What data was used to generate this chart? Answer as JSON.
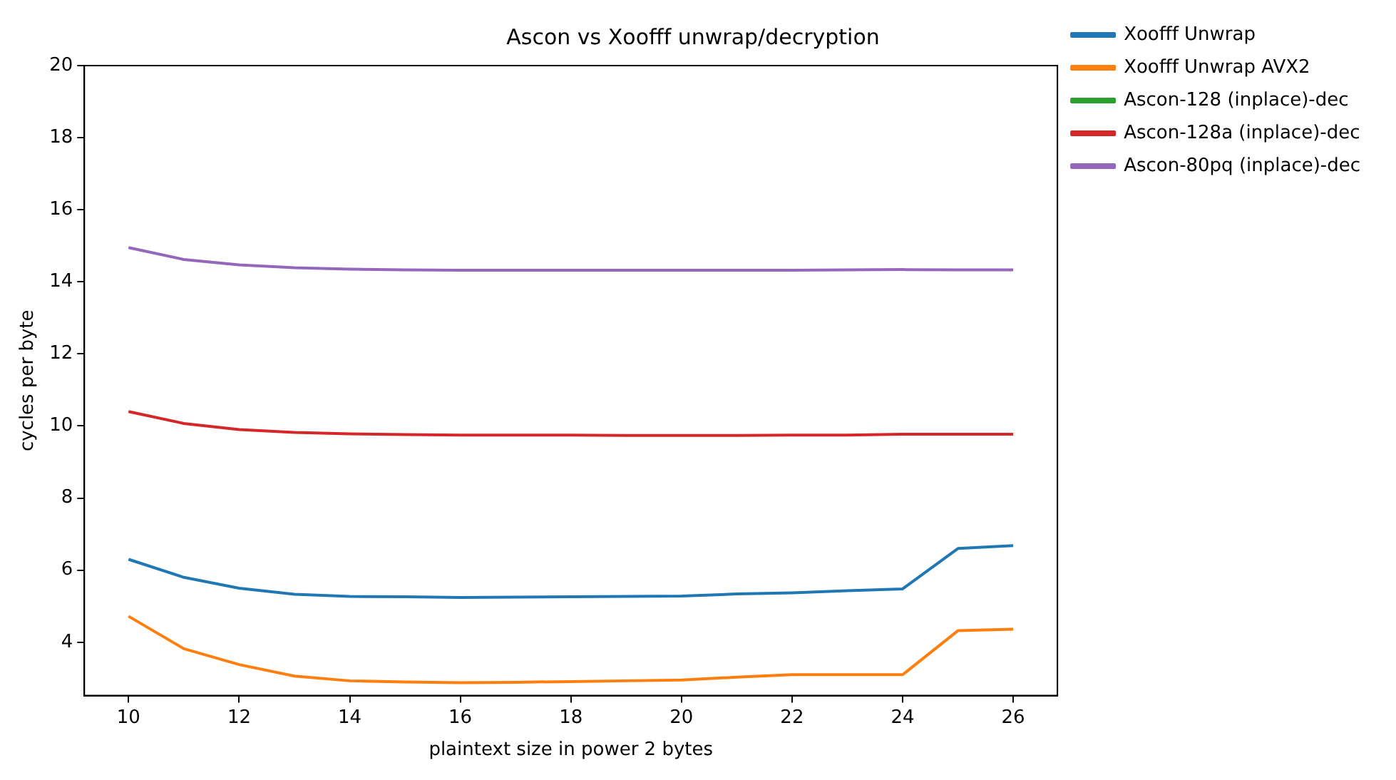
{
  "chart_data": {
    "type": "line",
    "title": "Ascon vs Xoofff unwrap/decryption",
    "xlabel": "plaintext size in power 2 bytes",
    "ylabel": "cycles per byte",
    "x": [
      10,
      11,
      12,
      13,
      14,
      15,
      16,
      17,
      18,
      19,
      20,
      21,
      22,
      23,
      24,
      25,
      26
    ],
    "xlim": [
      9.2,
      26.8
    ],
    "xticks": [
      10,
      12,
      14,
      16,
      18,
      20,
      22,
      24,
      26
    ],
    "ylim": [
      2.52,
      20
    ],
    "yticks": [
      4,
      6,
      8,
      10,
      12,
      14,
      16,
      18,
      20
    ],
    "grid": false,
    "legend": "top right",
    "marker": "none",
    "line_style": "solid",
    "series": [
      {
        "name": "Xoofff Unwrap",
        "color": "#1f77b4",
        "values": [
          6.3,
          5.8,
          5.5,
          5.33,
          5.27,
          5.26,
          5.24,
          5.25,
          5.26,
          5.27,
          5.28,
          5.34,
          5.37,
          5.43,
          5.48,
          6.6,
          6.68
        ]
      },
      {
        "name": "Xoofff Unwrap AVX2",
        "color": "#ff7f0e",
        "values": [
          4.72,
          3.82,
          3.38,
          3.06,
          2.93,
          2.9,
          2.88,
          2.89,
          2.91,
          2.93,
          2.95,
          3.03,
          3.1,
          3.1,
          3.1,
          4.32,
          4.36
        ]
      },
      {
        "name": "Ascon-128 (inplace)-dec",
        "color": "#2ca02c",
        "values": [
          null,
          null,
          null,
          null,
          null,
          null,
          null,
          null,
          null,
          null,
          null,
          null,
          null,
          null,
          null,
          null,
          null
        ]
      },
      {
        "name": "Ascon-128a (inplace)-dec",
        "color": "#d62728",
        "values": [
          10.4,
          10.07,
          9.9,
          9.82,
          9.78,
          9.76,
          9.75,
          9.75,
          9.75,
          9.74,
          9.74,
          9.74,
          9.75,
          9.75,
          9.77,
          9.77,
          9.77
        ]
      },
      {
        "name": "Ascon-80pq (inplace)-dec",
        "color": "#9467bd",
        "values": [
          14.95,
          14.62,
          14.47,
          14.39,
          14.35,
          14.33,
          14.32,
          14.32,
          14.32,
          14.32,
          14.32,
          14.32,
          14.32,
          14.33,
          14.34,
          14.33,
          14.33
        ]
      }
    ]
  }
}
